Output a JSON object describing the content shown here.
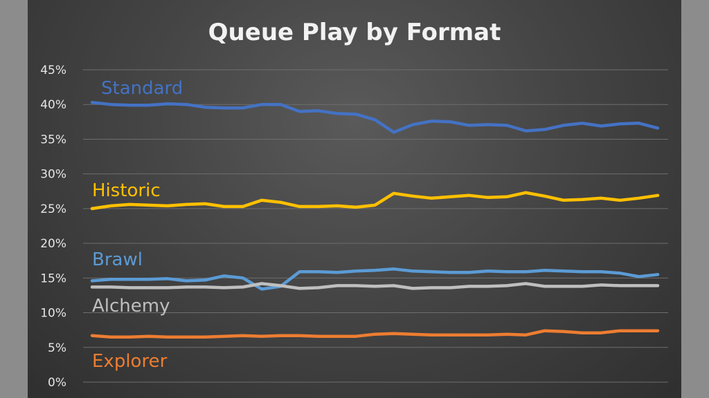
{
  "chart_data": {
    "type": "line",
    "title": "Queue Play by Format",
    "xlabel": "",
    "ylabel": "",
    "ylim": [
      0,
      45
    ],
    "y_ticks": [
      "0%",
      "5%",
      "10%",
      "15%",
      "20%",
      "25%",
      "30%",
      "35%",
      "40%",
      "45%"
    ],
    "grid": true,
    "legend": "inline labels at left",
    "series": [
      {
        "name": "Standard",
        "color": "#4472c4",
        "values": [
          40.3,
          40.0,
          39.9,
          39.9,
          40.1,
          40.0,
          39.6,
          39.5,
          39.5,
          40.0,
          40.0,
          39.0,
          39.1,
          38.7,
          38.6,
          37.8,
          36.0,
          37.1,
          37.6,
          37.5,
          37.0,
          37.1,
          37.0,
          36.2,
          36.4,
          37.0,
          37.3,
          36.9,
          37.2,
          37.3,
          36.6
        ]
      },
      {
        "name": "Historic",
        "color": "#ffc000",
        "values": [
          25.0,
          25.4,
          25.6,
          25.5,
          25.4,
          25.6,
          25.7,
          25.3,
          25.3,
          26.2,
          25.9,
          25.3,
          25.3,
          25.4,
          25.2,
          25.5,
          27.2,
          26.8,
          26.5,
          26.7,
          26.9,
          26.6,
          26.7,
          27.3,
          26.8,
          26.2,
          26.3,
          26.5,
          26.2,
          26.5,
          26.9
        ]
      },
      {
        "name": "Brawl",
        "color": "#5b9bd5",
        "values": [
          14.6,
          14.8,
          14.8,
          14.8,
          14.9,
          14.6,
          14.7,
          15.3,
          15.0,
          13.4,
          13.8,
          15.9,
          15.9,
          15.8,
          16.0,
          16.1,
          16.3,
          16.0,
          15.9,
          15.8,
          15.8,
          16.0,
          15.9,
          15.9,
          16.1,
          16.0,
          15.9,
          15.9,
          15.7,
          15.2,
          15.5
        ]
      },
      {
        "name": "Alchemy",
        "color": "#bfbfbf",
        "values": [
          13.7,
          13.7,
          13.6,
          13.6,
          13.6,
          13.7,
          13.7,
          13.6,
          13.7,
          14.2,
          13.9,
          13.5,
          13.6,
          13.9,
          13.9,
          13.8,
          13.9,
          13.5,
          13.6,
          13.6,
          13.8,
          13.8,
          13.9,
          14.2,
          13.8,
          13.8,
          13.8,
          14.0,
          13.9,
          13.9,
          13.9
        ]
      },
      {
        "name": "Explorer",
        "color": "#ed7d31",
        "values": [
          6.7,
          6.5,
          6.5,
          6.6,
          6.5,
          6.5,
          6.5,
          6.6,
          6.7,
          6.6,
          6.7,
          6.7,
          6.6,
          6.6,
          6.6,
          6.9,
          7.0,
          6.9,
          6.8,
          6.8,
          6.8,
          6.8,
          6.9,
          6.8,
          7.4,
          7.3,
          7.1,
          7.1,
          7.4,
          7.4,
          7.4
        ]
      }
    ]
  }
}
